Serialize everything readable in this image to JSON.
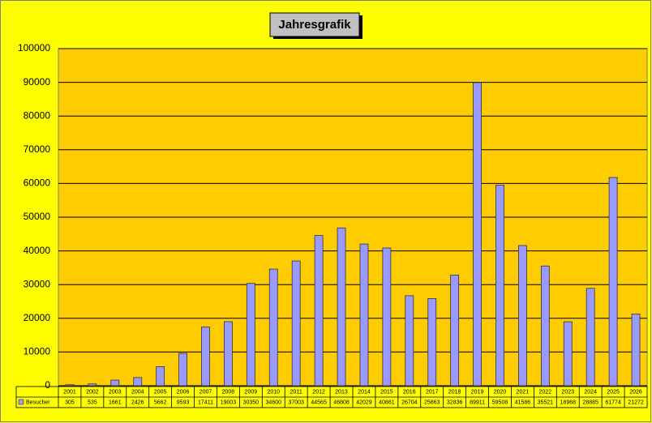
{
  "chart_data": {
    "type": "bar",
    "title": "Jahresgrafik",
    "categories": [
      "2001",
      "2002",
      "2003",
      "2004",
      "2005",
      "2006",
      "2007",
      "2008",
      "2009",
      "2010",
      "2011",
      "2012",
      "2013",
      "2014",
      "2015",
      "2016",
      "2017",
      "2018",
      "2019",
      "2020",
      "2021",
      "2022",
      "2023",
      "2024",
      "2025",
      "2026"
    ],
    "series": [
      {
        "name": "Besucher",
        "color": "#9999ff",
        "values": [
          305,
          535,
          1661,
          2426,
          5662,
          9593,
          17411,
          19003,
          30350,
          34600,
          37003,
          44565,
          46808,
          42029,
          40861,
          26704,
          25863,
          32836,
          89911,
          59508,
          41586,
          35521,
          18968,
          28885,
          61774,
          21272
        ]
      }
    ],
    "ylim": [
      0,
      100000
    ],
    "yticks": [
      0,
      10000,
      20000,
      30000,
      40000,
      50000,
      60000,
      70000,
      80000,
      90000,
      100000
    ],
    "grid": true
  }
}
